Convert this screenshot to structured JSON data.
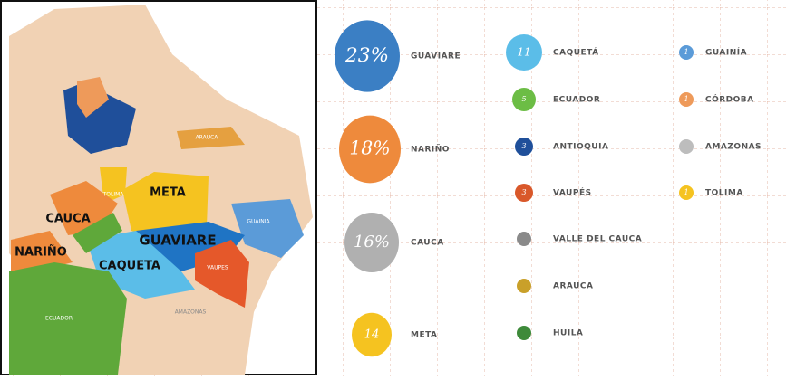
{
  "map": {
    "labels": [
      "META",
      "CAUCA",
      "GUAVIARE",
      "NARIÑO",
      "CAQUETA",
      "ECUADOR",
      "ARAUCA",
      "GUAINIA",
      "VAUPES",
      "AMAZONAS",
      "TOLIMA"
    ]
  },
  "legend": {
    "items": [
      {
        "value": "23%",
        "name": "GUAVIARE",
        "color": "#3b7fc4"
      },
      {
        "value": "18%",
        "name": "NARIÑO",
        "color": "#ee8a3c"
      },
      {
        "value": "16%",
        "name": "CAUCA",
        "color": "#b0b0b0"
      },
      {
        "value": "14",
        "name": "META",
        "color": "#f5c320"
      },
      {
        "value": "11",
        "name": "CAQUETÁ",
        "color": "#5bbde8"
      },
      {
        "value": "5",
        "name": "ECUADOR",
        "color": "#6cbd45"
      },
      {
        "value": "3",
        "name": "ANTIOQUIA",
        "color": "#1f4f9a"
      },
      {
        "value": "3",
        "name": "VAUPÉS",
        "color": "#d9582a"
      },
      {
        "name": "VALLE DEL CAUCA",
        "color": "#8a8a8a"
      },
      {
        "name": "ARAUCA",
        "color": "#c9a02a"
      },
      {
        "name": "HUILA",
        "color": "#3e8a3a"
      },
      {
        "value": "1",
        "name": "GUAINÍA",
        "color": "#5b9bd8"
      },
      {
        "value": "1",
        "name": "CÓRDOBA",
        "color": "#ee9a5a"
      },
      {
        "name": "AMAZONAS",
        "color": "#bdbdbd"
      },
      {
        "value": "1",
        "name": "TOLIMA",
        "color": "#f5c320"
      }
    ]
  }
}
